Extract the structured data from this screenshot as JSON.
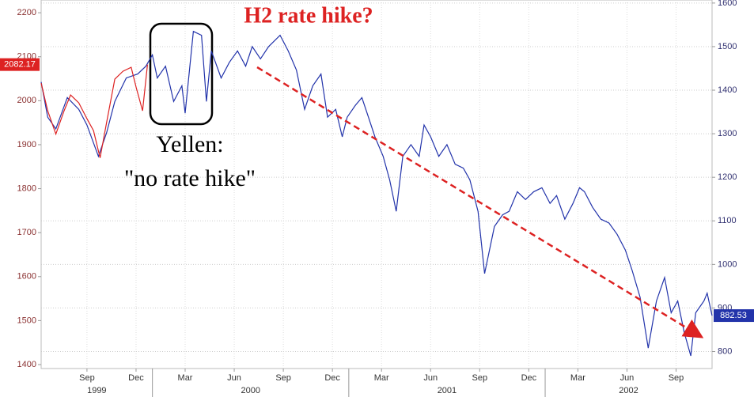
{
  "chart_data": {
    "type": "line",
    "annotations": [
      "H2 rate hike?",
      "Yellen:",
      "\"no rate hike\""
    ],
    "xlim": [
      5.2,
      46.2
    ],
    "xticks": [
      {
        "value": 8,
        "label": "Sep"
      },
      {
        "value": 11,
        "label": "Dec"
      },
      {
        "value": 14,
        "label": "Mar"
      },
      {
        "value": 17,
        "label": "Jun"
      },
      {
        "value": 20,
        "label": "Sep"
      },
      {
        "value": 23,
        "label": "Dec"
      },
      {
        "value": 26,
        "label": "Mar"
      },
      {
        "value": 29,
        "label": "Jun"
      },
      {
        "value": 32,
        "label": "Sep"
      },
      {
        "value": 35,
        "label": "Dec"
      },
      {
        "value": 38,
        "label": "Mar"
      },
      {
        "value": 41,
        "label": "Jun"
      },
      {
        "value": 44,
        "label": "Sep"
      }
    ],
    "year_ticks": [
      {
        "value": 0,
        "label": "1999"
      },
      {
        "value": 12,
        "label": "2000"
      },
      {
        "value": 24,
        "label": "2001"
      },
      {
        "value": 36,
        "label": "2002"
      }
    ],
    "ylim": [
      1391,
      2229
    ],
    "yticks": [
      1400,
      1500,
      1600,
      1700,
      1800,
      1900,
      2000,
      2100,
      2200
    ],
    "y2lim": [
      761,
      1607
    ],
    "y2ticks": [
      800,
      900,
      1000,
      1100,
      1200,
      1300,
      1400,
      1500,
      1600
    ],
    "grid": true,
    "series": [
      {
        "color": "#2233aa",
        "axis": "y2",
        "last_label": "882.53",
        "x": [
          5.2,
          5.6,
          6.1,
          6.8,
          7.5,
          8.0,
          8.7,
          9.2,
          9.7,
          10.4,
          11.1,
          11.6,
          12.0,
          12.3,
          12.8,
          13.3,
          13.8,
          14.0,
          14.5,
          15.0,
          15.3,
          15.6,
          16.2,
          16.7,
          17.2,
          17.7,
          18.1,
          18.6,
          19.1,
          19.8,
          20.3,
          20.8,
          21.3,
          21.8,
          22.3,
          22.7,
          23.2,
          23.6,
          23.9,
          24.4,
          24.8,
          25.2,
          25.6,
          26.1,
          26.5,
          26.9,
          27.3,
          27.8,
          28.3,
          28.6,
          29.0,
          29.5,
          30.0,
          30.5,
          31.0,
          31.4,
          31.9,
          32.3,
          32.9,
          33.4,
          33.8,
          34.3,
          34.8,
          35.3,
          35.8,
          36.3,
          36.7,
          37.2,
          37.7,
          38.1,
          38.4,
          38.9,
          39.4,
          39.9,
          40.4,
          40.9,
          41.3,
          41.8,
          42.3,
          42.8,
          43.3,
          43.7,
          44.1,
          44.5,
          44.9,
          45.2,
          45.7,
          45.9,
          46.2
        ],
        "values": [
          1419,
          1338,
          1311,
          1383,
          1356,
          1320,
          1248,
          1302,
          1374,
          1428,
          1437,
          1455,
          1481,
          1428,
          1455,
          1374,
          1410,
          1347,
          1535,
          1526,
          1374,
          1490,
          1428,
          1464,
          1490,
          1455,
          1500,
          1472,
          1500,
          1526,
          1490,
          1446,
          1356,
          1410,
          1437,
          1338,
          1356,
          1293,
          1338,
          1365,
          1383,
          1338,
          1293,
          1248,
          1194,
          1122,
          1248,
          1275,
          1248,
          1320,
          1293,
          1248,
          1275,
          1230,
          1221,
          1194,
          1122,
          979,
          1087,
          1114,
          1122,
          1167,
          1149,
          1167,
          1176,
          1140,
          1158,
          1104,
          1140,
          1176,
          1167,
          1131,
          1104,
          1095,
          1069,
          1033,
          988,
          925,
          808,
          916,
          970,
          889,
          916,
          844,
          790,
          889,
          916,
          934,
          882.53
        ]
      },
      {
        "color": "#dd2222",
        "axis": "y",
        "last_label": "2082.17",
        "x": [
          5.2,
          5.6,
          6.1,
          6.6,
          7.0,
          7.5,
          8.0,
          8.4,
          8.8,
          9.2,
          9.7,
          10.2,
          10.7,
          11.0,
          11.4,
          11.7
        ],
        "values": [
          2040,
          1977,
          1924,
          1977,
          2013,
          1995,
          1959,
          1932,
          1870,
          1950,
          2049,
          2067,
          2076,
          2031,
          1977,
          2082.17
        ]
      }
    ]
  }
}
